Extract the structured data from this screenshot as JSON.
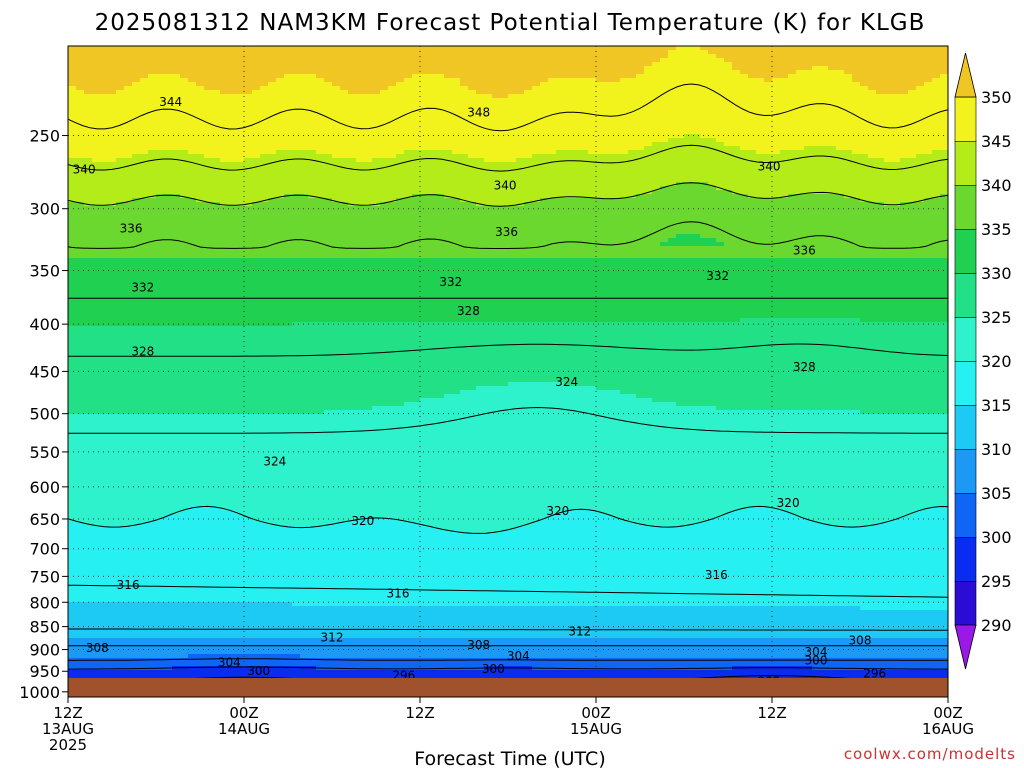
{
  "chart_data": {
    "type": "heatmap",
    "title": "2025081312 NAM3KM Forecast Potential Temperature (K) for KLGB",
    "xlabel": "Forecast Time (UTC)",
    "ylabel": "",
    "x_ticks": [
      {
        "hours": 0,
        "lines": [
          "12Z",
          "13AUG",
          "2025"
        ]
      },
      {
        "hours": 12,
        "lines": [
          "00Z",
          "14AUG"
        ]
      },
      {
        "hours": 24,
        "lines": [
          "12Z"
        ]
      },
      {
        "hours": 36,
        "lines": [
          "00Z",
          "15AUG"
        ]
      },
      {
        "hours": 48,
        "lines": [
          "12Z"
        ]
      },
      {
        "hours": 60,
        "lines": [
          "00Z",
          "16AUG"
        ]
      }
    ],
    "xlim_hours": [
      0,
      60
    ],
    "y_ticks": [
      250,
      300,
      350,
      400,
      450,
      500,
      550,
      600,
      650,
      700,
      750,
      800,
      850,
      900,
      950,
      1000
    ],
    "ylim_hpa": [
      200,
      1013
    ],
    "y_scale": "log",
    "y_reversed": true,
    "colorbar": {
      "ticks": [
        290,
        295,
        300,
        305,
        310,
        315,
        320,
        325,
        330,
        335,
        340,
        345,
        350
      ],
      "colors": [
        "#9a19e6",
        "#2a0cd4",
        "#0a2cf0",
        "#1066f4",
        "#1a9af4",
        "#1ccaf4",
        "#26f0f2",
        "#2ef2cc",
        "#22e086",
        "#20d050",
        "#6ad82e",
        "#b4ec1a",
        "#f2f21c",
        "#f0c624"
      ],
      "extend": "both",
      "position": "right"
    },
    "contour_interval": 4,
    "contour_labels": [
      {
        "value": 344,
        "hours": 7.0,
        "hpa": 230
      },
      {
        "value": 348,
        "hours": 28.0,
        "hpa": 236
      },
      {
        "value": 340,
        "hours": 1.1,
        "hpa": 272
      },
      {
        "value": 340,
        "hours": 29.8,
        "hpa": 283
      },
      {
        "value": 340,
        "hours": 47.8,
        "hpa": 270
      },
      {
        "value": 336,
        "hours": 4.3,
        "hpa": 315
      },
      {
        "value": 336,
        "hours": 29.9,
        "hpa": 318
      },
      {
        "value": 336,
        "hours": 50.2,
        "hpa": 333
      },
      {
        "value": 332,
        "hours": 5.1,
        "hpa": 365
      },
      {
        "value": 332,
        "hours": 26.1,
        "hpa": 360
      },
      {
        "value": 332,
        "hours": 44.3,
        "hpa": 355
      },
      {
        "value": 328,
        "hours": 5.1,
        "hpa": 428
      },
      {
        "value": 328,
        "hours": 27.3,
        "hpa": 387
      },
      {
        "value": 328,
        "hours": 50.2,
        "hpa": 445
      },
      {
        "value": 324,
        "hours": 34.0,
        "hpa": 462
      },
      {
        "value": 324,
        "hours": 14.1,
        "hpa": 563
      },
      {
        "value": 320,
        "hours": 49.1,
        "hpa": 625
      },
      {
        "value": 320,
        "hours": 33.4,
        "hpa": 637
      },
      {
        "value": 320,
        "hours": 20.1,
        "hpa": 653
      },
      {
        "value": 316,
        "hours": 4.1,
        "hpa": 766
      },
      {
        "value": 316,
        "hours": 22.5,
        "hpa": 783
      },
      {
        "value": 316,
        "hours": 44.2,
        "hpa": 747
      },
      {
        "value": 312,
        "hours": 18.0,
        "hpa": 873
      },
      {
        "value": 312,
        "hours": 34.9,
        "hpa": 860
      },
      {
        "value": 308,
        "hours": 2.0,
        "hpa": 897
      },
      {
        "value": 308,
        "hours": 28.0,
        "hpa": 890
      },
      {
        "value": 308,
        "hours": 54.0,
        "hpa": 880
      },
      {
        "value": 304,
        "hours": 11.0,
        "hpa": 929
      },
      {
        "value": 304,
        "hours": 30.7,
        "hpa": 915
      },
      {
        "value": 304,
        "hours": 51.0,
        "hpa": 905
      },
      {
        "value": 300,
        "hours": 13.0,
        "hpa": 950
      },
      {
        "value": 300,
        "hours": 29.0,
        "hpa": 945
      },
      {
        "value": 300,
        "hours": 51.0,
        "hpa": 925
      },
      {
        "value": 296,
        "hours": 22.9,
        "hpa": 960
      },
      {
        "value": 296,
        "hours": 55.0,
        "hpa": 955
      },
      {
        "value": 292,
        "hours": 47.8,
        "hpa": 975
      }
    ],
    "grid": true,
    "ground_color": "#a0522d"
  },
  "credit": "coolwx.com/modelts"
}
